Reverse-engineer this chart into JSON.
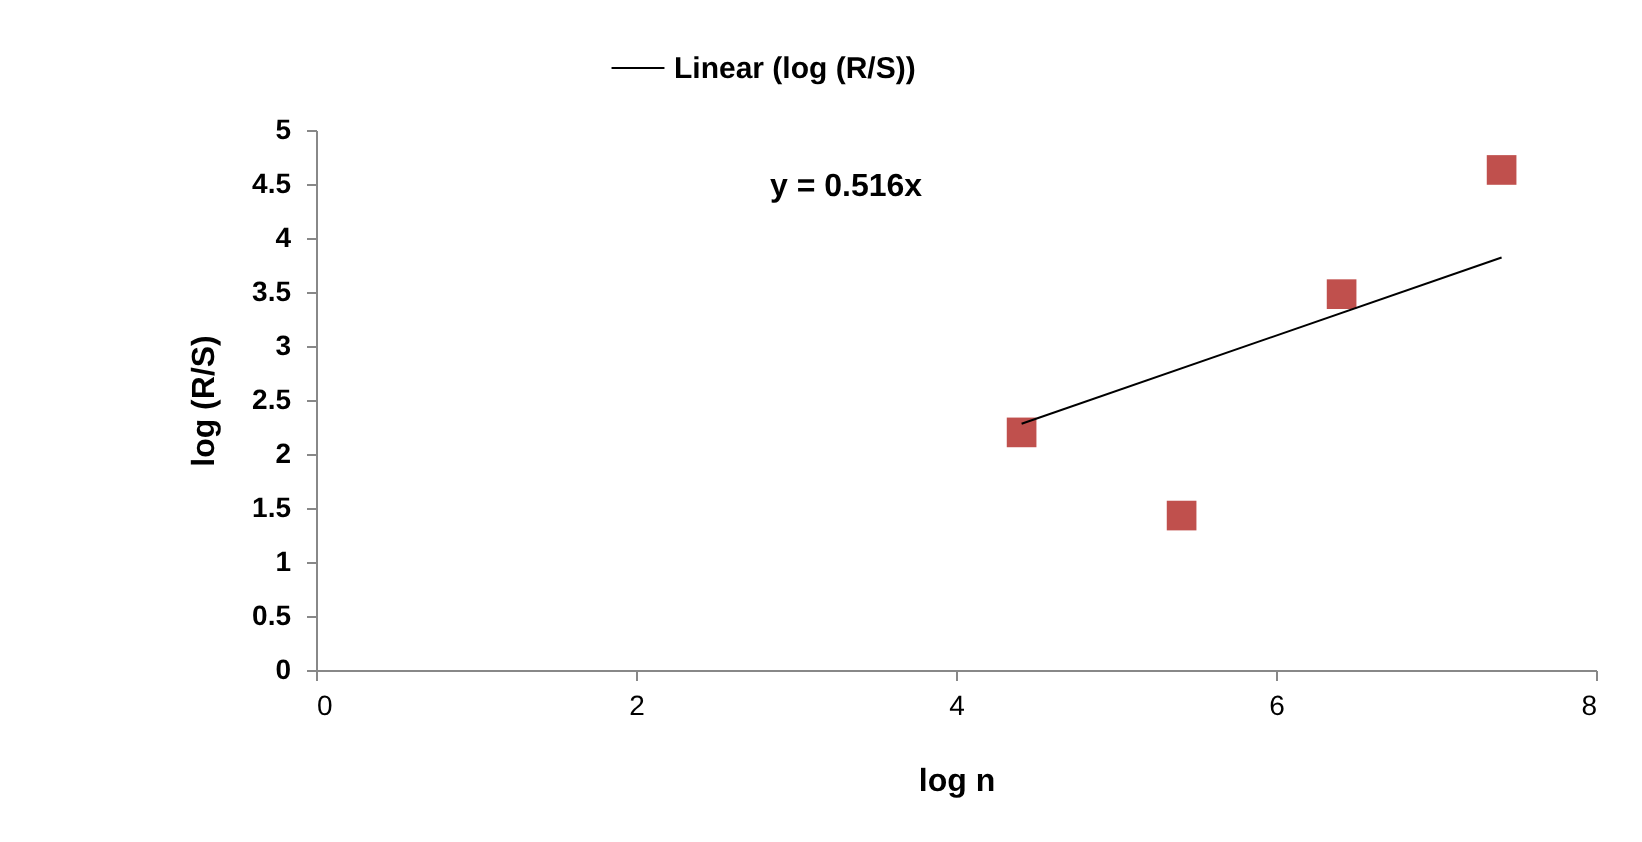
{
  "chart_data": {
    "type": "scatter",
    "xlabel": "log n",
    "ylabel": "log (R/S)",
    "annotations": [
      "y = 0.516x"
    ],
    "series": [
      {
        "color": "#c0504d",
        "x": [
          4.41,
          5.41,
          6.41,
          7.41
        ],
        "values": [
          2.2,
          1.43,
          3.48,
          4.63
        ]
      },
      {
        "type": "line",
        "name": "Linear (log (R/S))",
        "color": "#000000",
        "marker": "none",
        "x": [
          4.41,
          7.41
        ],
        "values": [
          2.28,
          3.82
        ]
      }
    ],
    "xlim": [
      0,
      8
    ],
    "xticks": [
      0,
      2,
      4,
      6,
      8
    ],
    "ylim": [
      0,
      5
    ],
    "yticks": [
      0,
      0.5,
      1,
      1.5,
      2,
      2.5,
      3,
      3.5,
      4,
      4.5,
      5
    ],
    "grid": false,
    "legend": "top",
    "marker": "square"
  }
}
